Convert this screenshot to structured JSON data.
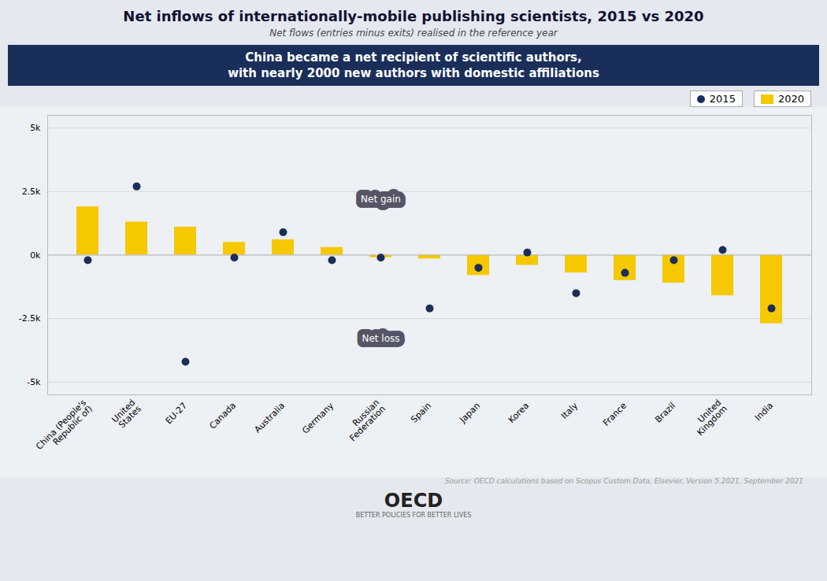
{
  "chart_data": {
    "type": "bar",
    "title": "Net inflows of internationally-mobile publishing scientists, 2015 vs 2020",
    "subtitle": "Net flows (entries minus exits) realised in the reference year",
    "highlight": [
      "China became a net recipient of scientific authors,",
      "with nearly 2000 new authors with domestic affiliations"
    ],
    "source": "Source: OECD calculations based on Scopus Custom Data, Elsevier, Version 5.2021, September 2021",
    "logo": [
      "OECD",
      "BETTER POLICIES FOR BETTER LIVES"
    ],
    "categories": [
      "China (People's\nRepublic of)",
      "United\nStates",
      "EU-27",
      "Canada",
      "Australia",
      "Germany",
      "Russian\nFederation",
      "Spain",
      "Japan",
      "Korea",
      "Italy",
      "France",
      "Brazil",
      "United\nKingdom",
      "India"
    ],
    "series": [
      {
        "name": "2015",
        "type": "scatter",
        "color": "#1a2e5a",
        "values": [
          -200,
          2700,
          -4200,
          -100,
          900,
          -200,
          -100,
          -2100,
          -500,
          100,
          -1500,
          -700,
          -200,
          200,
          -2100
        ]
      },
      {
        "name": "2020",
        "type": "bar",
        "color": "#F5C800",
        "values": [
          1900,
          1300,
          1100,
          500,
          600,
          300,
          -100,
          -150,
          -800,
          -400,
          -700,
          -1000,
          -1100,
          -1600,
          -2700
        ]
      }
    ],
    "annotations": [
      {
        "text": "Net gain",
        "x": "Russian\nFederation",
        "y": 2200
      },
      {
        "text": "Net loss",
        "x": "Russian\nFederation",
        "y": -3300
      }
    ],
    "ylim": [
      -5500,
      5500
    ],
    "yticks": [
      {
        "value": -5000,
        "label": "-5k"
      },
      {
        "value": -2500,
        "label": "-2.5k"
      },
      {
        "value": 0,
        "label": "0k"
      },
      {
        "value": 2500,
        "label": "2.5k"
      },
      {
        "value": 5000,
        "label": "5k"
      }
    ],
    "grid": true,
    "legend": "upper right"
  }
}
